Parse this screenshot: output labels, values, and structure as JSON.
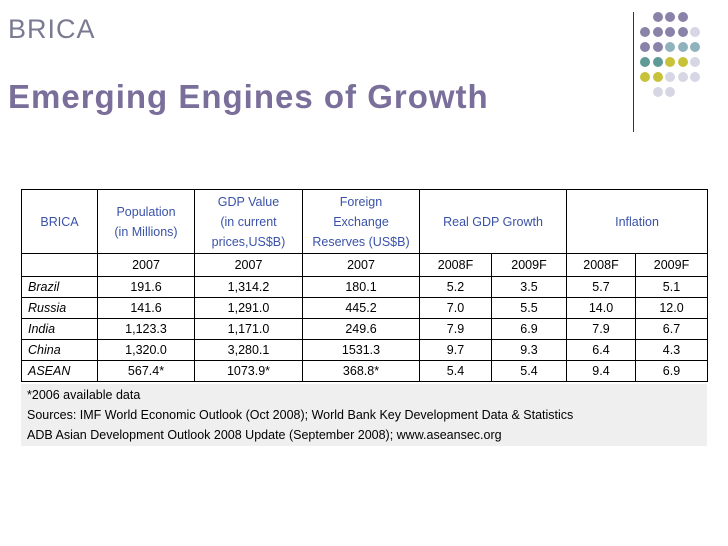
{
  "slide": {
    "kicker": "BRICA",
    "title": "Emerging Engines of Growth"
  },
  "decor": {
    "dot_colors": [
      "#8a82a8",
      "#8fb2bd",
      "#5e9a96",
      "#c8c23a",
      "#d6d6e4"
    ]
  },
  "table": {
    "headers": [
      "BRICA",
      "Population\n(in Millions)",
      "GDP Value\n(in current\nprices,US$B)",
      "Foreign\nExchange\nReserves (US$B)",
      "Real GDP Growth",
      "Inflation"
    ],
    "subheaders": [
      "",
      "2007",
      "2007",
      "2007",
      "2008F",
      "2009F",
      "2008F",
      "2009F"
    ],
    "rows": [
      [
        "Brazil",
        "191.6",
        "1,314.2",
        "180.1",
        "5.2",
        "3.5",
        "5.7",
        "5.1"
      ],
      [
        "Russia",
        "141.6",
        "1,291.0",
        "445.2",
        "7.0",
        "5.5",
        "14.0",
        "12.0"
      ],
      [
        "India",
        "1,123.3",
        "1,171.0",
        "249.6",
        "7.9",
        "6.9",
        "7.9",
        "6.7"
      ],
      [
        "China",
        "1,320.0",
        "3,280.1",
        "1531.3",
        "9.7",
        "9.3",
        "6.4",
        "4.3"
      ],
      [
        "ASEAN",
        "567.4*",
        "1073.9*",
        "368.8*",
        "5.4",
        "5.4",
        "9.4",
        "6.9"
      ]
    ]
  },
  "notes": [
    "*2006 available data",
    "Sources: IMF World Economic Outlook (Oct 2008); World Bank Key Development Data & Statistics",
    "ADB Asian Development Outlook 2008 Update (September 2008); www.aseansec.org"
  ]
}
